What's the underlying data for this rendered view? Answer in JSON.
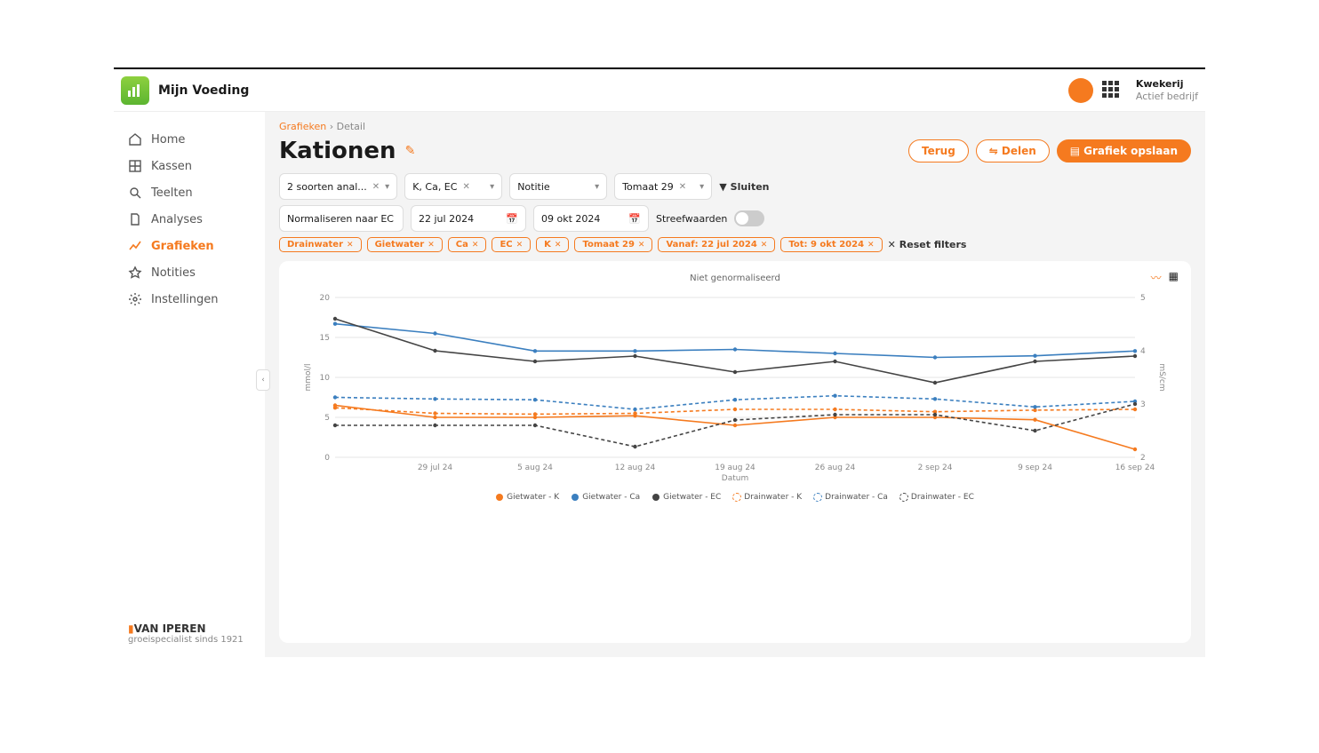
{
  "colors": {
    "accent": "#f57a1f",
    "blue": "#3b7fbf",
    "black": "#444444",
    "grid": "#e5e5e5"
  },
  "header": {
    "app_name": "Mijn Voeding",
    "account_name": "Kwekerij",
    "account_sub": "Actief bedrijf"
  },
  "sidebar": {
    "items": [
      {
        "label": "Home",
        "icon": "home"
      },
      {
        "label": "Kassen",
        "icon": "grid"
      },
      {
        "label": "Teelten",
        "icon": "search"
      },
      {
        "label": "Analyses",
        "icon": "doc"
      },
      {
        "label": "Grafieken",
        "icon": "chart",
        "active": true
      },
      {
        "label": "Notities",
        "icon": "star"
      },
      {
        "label": "Instellingen",
        "icon": "gear"
      }
    ],
    "brand": "VAN IPEREN",
    "brand_sub": "groeispecialist sinds 1921"
  },
  "crumbs": {
    "parent": "Grafieken",
    "current": "Detail"
  },
  "page": {
    "title": "Kationen",
    "btn_back": "Terug",
    "btn_share": "Delen",
    "btn_save": "Grafiek opslaan"
  },
  "filters": {
    "row1": [
      {
        "label": "2 soorten anal...",
        "clearable": true
      },
      {
        "label": "K, Ca, EC",
        "clearable": true
      },
      {
        "label": "Notitie",
        "clearable": false
      },
      {
        "label": "Tomaat 29",
        "clearable": true
      }
    ],
    "close_label": "Sluiten",
    "row2": {
      "normalize": "Normaliseren naar EC",
      "date_from": "22 jul 2024",
      "date_to": "09 okt 2024",
      "targets_label": "Streefwaarden"
    },
    "chips": [
      "Drainwater",
      "Gietwater",
      "Ca",
      "EC",
      "K",
      "Tomaat 29",
      "Vanaf: 22 jul 2024",
      "Tot: 9 okt 2024"
    ],
    "reset": "Reset filters"
  },
  "chart": {
    "title": "Niet genormaliseerd",
    "y_label_left": "mmol/l",
    "y_label_right": "mS/cm",
    "x_label": "Datum",
    "y_left": {
      "min": 0,
      "max": 20,
      "ticks": [
        0,
        5,
        10,
        15,
        20
      ]
    },
    "y_right": {
      "min": 2,
      "max": 5,
      "ticks": [
        2,
        3,
        4,
        5
      ]
    },
    "x_categories": [
      "29 jul 24",
      "5 aug 24",
      "12 aug 24",
      "19 aug 24",
      "26 aug 24",
      "2 sep 24",
      "9 sep 24",
      "16 sep 24"
    ],
    "series": [
      {
        "name": "Gietwater - K",
        "color": "#f57a1f",
        "dash": false,
        "axis": "left",
        "values": [
          6.5,
          5.0,
          5.0,
          5.2,
          4.0,
          5.0,
          5.0,
          4.7,
          1.0
        ]
      },
      {
        "name": "Gietwater - Ca",
        "color": "#3b7fbf",
        "dash": false,
        "axis": "left",
        "values": [
          16.7,
          15.5,
          13.3,
          13.3,
          13.5,
          13.0,
          12.5,
          12.7,
          13.3
        ]
      },
      {
        "name": "Gietwater - EC",
        "color": "#444444",
        "dash": false,
        "axis": "right",
        "values": [
          4.6,
          4.0,
          3.8,
          3.9,
          3.6,
          3.8,
          3.4,
          3.8,
          3.9
        ]
      },
      {
        "name": "Drainwater - K",
        "color": "#f57a1f",
        "dash": true,
        "axis": "left",
        "values": [
          6.2,
          5.5,
          5.4,
          5.5,
          6.0,
          6.0,
          5.7,
          5.9,
          6.0
        ]
      },
      {
        "name": "Drainwater - Ca",
        "color": "#3b7fbf",
        "dash": true,
        "axis": "left",
        "values": [
          7.5,
          7.3,
          7.2,
          6.0,
          7.2,
          7.7,
          7.3,
          6.3,
          7.0
        ]
      },
      {
        "name": "Drainwater - EC",
        "color": "#444444",
        "dash": true,
        "axis": "right",
        "values": [
          2.6,
          2.6,
          2.6,
          2.2,
          2.7,
          2.8,
          2.8,
          2.5,
          3.0
        ]
      }
    ]
  }
}
